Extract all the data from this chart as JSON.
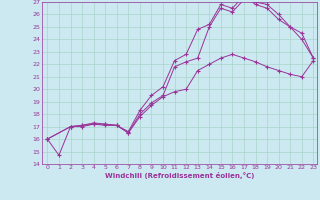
{
  "xlabel": "Windchill (Refroidissement éolien,°C)",
  "bg_color": "#cce8f0",
  "grid_color": "#aad4cc",
  "line_color": "#993399",
  "ylim": [
    14,
    27
  ],
  "xlim": [
    -0.5,
    23.3
  ],
  "yticks": [
    14,
    15,
    16,
    17,
    18,
    19,
    20,
    21,
    22,
    23,
    24,
    25,
    26,
    27
  ],
  "xticks": [
    0,
    1,
    2,
    3,
    4,
    5,
    6,
    7,
    8,
    9,
    10,
    11,
    12,
    13,
    14,
    15,
    16,
    17,
    18,
    19,
    20,
    21,
    22,
    23
  ],
  "line1_x": [
    0,
    1,
    2,
    3,
    4,
    5,
    6,
    7,
    8,
    9,
    10,
    11,
    12,
    13,
    14,
    15,
    16,
    17,
    18,
    19,
    20,
    21,
    22,
    23
  ],
  "line1_y": [
    16.0,
    14.7,
    17.0,
    17.0,
    17.2,
    17.1,
    17.1,
    16.5,
    17.8,
    18.7,
    19.4,
    19.8,
    20.0,
    21.5,
    22.0,
    22.5,
    22.8,
    22.5,
    22.2,
    21.8,
    21.5,
    21.2,
    21.0,
    22.3
  ],
  "line2_x": [
    0,
    2,
    3,
    4,
    5,
    6,
    7,
    8,
    9,
    10,
    11,
    12,
    13,
    14,
    15,
    16,
    17,
    18,
    19,
    20,
    21,
    22,
    23
  ],
  "line2_y": [
    16.0,
    17.0,
    17.1,
    17.2,
    17.2,
    17.1,
    16.5,
    18.0,
    18.9,
    19.5,
    21.8,
    22.2,
    22.5,
    25.0,
    26.5,
    26.2,
    27.2,
    27.0,
    26.8,
    26.0,
    25.0,
    24.0,
    22.5
  ],
  "line3_x": [
    0,
    2,
    3,
    4,
    5,
    6,
    7,
    8,
    9,
    10,
    11,
    12,
    13,
    14,
    15,
    16,
    17,
    18,
    19,
    20,
    21,
    22,
    23
  ],
  "line3_y": [
    16.0,
    17.0,
    17.1,
    17.3,
    17.2,
    17.1,
    16.6,
    18.3,
    19.5,
    20.2,
    22.3,
    22.8,
    24.8,
    25.2,
    26.8,
    26.5,
    27.5,
    26.8,
    26.5,
    25.6,
    25.0,
    24.5,
    22.5
  ]
}
